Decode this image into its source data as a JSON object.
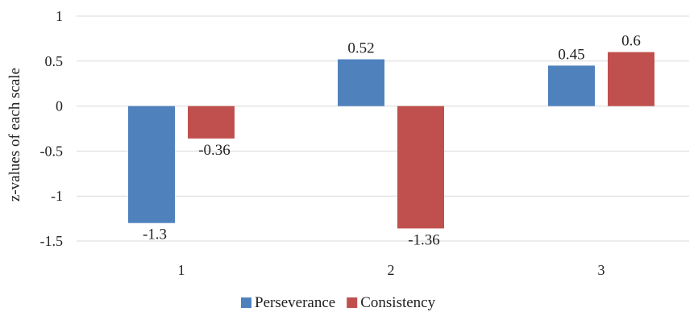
{
  "chart_data": {
    "type": "bar",
    "title": "",
    "xlabel": "",
    "ylabel": "z-values of each scale",
    "categories": [
      "1",
      "2",
      "3"
    ],
    "series": [
      {
        "name": "Perseverance",
        "color": "#4f81bd",
        "values": [
          -1.3,
          0.52,
          0.45
        ],
        "labels": [
          "-1.3",
          "0.52",
          "0.45"
        ]
      },
      {
        "name": "Consistency",
        "color": "#c0504d",
        "values": [
          -0.36,
          -1.36,
          0.6
        ],
        "labels": [
          "-0.36",
          "-1.36",
          "0.6"
        ]
      }
    ],
    "ylim": [
      -1.5,
      1
    ],
    "yticks": [
      1,
      0.5,
      0,
      -0.5,
      -1,
      -1.5
    ],
    "ytick_labels": [
      "1",
      "0.5",
      "0",
      "-0.5",
      "-1",
      "-1.5"
    ],
    "grid": true,
    "legend_position": "bottom"
  }
}
